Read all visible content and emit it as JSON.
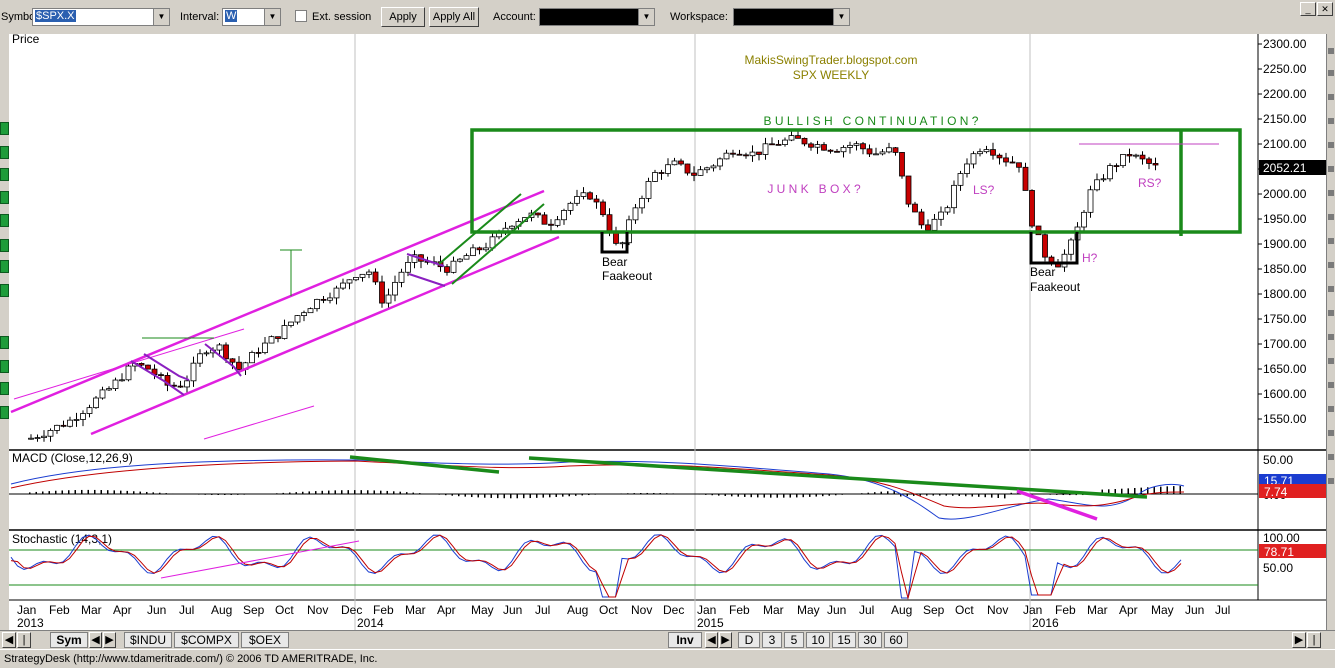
{
  "toolbar": {
    "symbol_label": "Symbol:",
    "symbol_value": "$SPX.X",
    "interval_label": "Interval:",
    "interval_value": "W",
    "ext_session_label": "Ext. session",
    "apply_label": "Apply",
    "apply_all_label": "Apply All",
    "account_label": "Account:",
    "workspace_label": "Workspace:"
  },
  "chart": {
    "price_label": "Price",
    "title_line1": "MakisSwingTrader.blogspot.com",
    "title_line2": "SPX WEEKLY",
    "annotations": {
      "bullish": "B U L L I S H   C O N T I N U A T I O N ?",
      "junk_box": "J U N K   B O X ?",
      "ls": "LS?",
      "rs": "RS?",
      "h": "H?",
      "bear1_line1": "Bear",
      "bear1_line2": "Faakeout",
      "bear2_line1": "Bear",
      "bear2_line2": "Faakeout"
    },
    "price_axis": [
      "2300.00",
      "2250.00",
      "2200.00",
      "2150.00",
      "2100.00",
      "2050.00",
      "2000.00",
      "1950.00",
      "1900.00",
      "1850.00",
      "1800.00",
      "1750.00",
      "1700.00",
      "1650.00",
      "1600.00",
      "1550.00"
    ],
    "last_price": "2052.21",
    "months": [
      "Jan",
      "Feb",
      "Mar",
      "Apr",
      "Jun",
      "Jul",
      "Aug",
      "Sep",
      "Oct",
      "Nov",
      "Dec",
      "Feb",
      "Mar",
      "Apr",
      "May",
      "Jun",
      "Jul",
      "Aug",
      "Oct",
      "Nov",
      "Dec",
      "Jan",
      "Feb",
      "Mar",
      "May",
      "Jun",
      "Jul",
      "Aug",
      "Sep",
      "Oct",
      "Nov",
      "Jan",
      "Feb",
      "Mar",
      "Apr",
      "May",
      "Jun",
      "Jul"
    ],
    "years": [
      "2013",
      "2014",
      "2015",
      "2016"
    ],
    "macd_label": "MACD (Close,12,26,9)",
    "macd_axis": [
      "50.00",
      "0.00"
    ],
    "macd_val1": "15.71",
    "macd_val2": "7.74",
    "stoch_label": "Stochastic (14,3,1)",
    "stoch_axis": [
      "100.00",
      "50.00"
    ],
    "stoch_val": "78.71"
  },
  "bottom": {
    "sym_tab": "Sym",
    "tabs": [
      "$INDU",
      "$COMPX",
      "$OEX"
    ],
    "inv_tab": "Inv",
    "periods": [
      "D",
      "3",
      "5",
      "10",
      "15",
      "30",
      "60"
    ]
  },
  "status": "StrategyDesk (http://www.tdameritrade.com/) © 2006 TD AMERITRADE, Inc.",
  "colors": {
    "green_box": "#1a8a1a",
    "magenta": "#e020e0",
    "candle_up": "#ffffff",
    "candle_down": "#c80000",
    "title_olive": "#8b8000",
    "junk_purple": "#c040c0",
    "price_highlight": "#000000",
    "macd_blue_tag": "#1a3cd0",
    "red_tag": "#e02020"
  },
  "icons": {
    "combo_arrow": "dropdown-arrow-icon",
    "scroll_left": "scroll-left-icon",
    "scroll_right": "scroll-right-icon",
    "window_close": "close-icon",
    "window_min": "minimize-icon"
  }
}
